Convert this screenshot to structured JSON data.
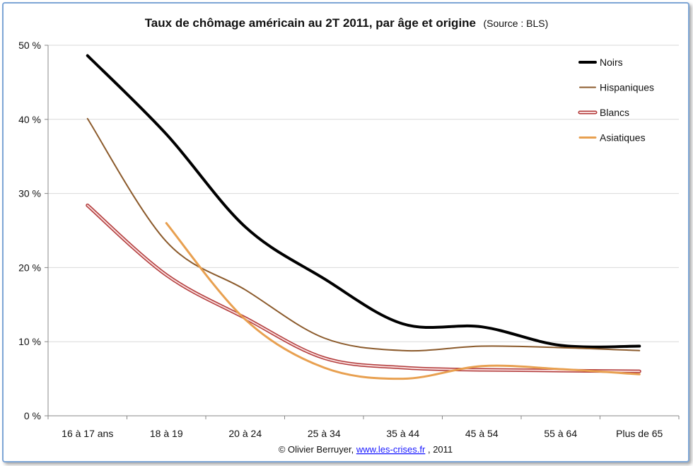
{
  "chart_data": {
    "type": "line",
    "title": "Taux de chômage américain au 2T 2011, par âge et origine",
    "subtitle": "(Source : BLS)",
    "categories": [
      "16 à 17 ans",
      "18 à 19",
      "20 à 24",
      "25 à 34",
      "35 à 44",
      "45 à 54",
      "55 à 64",
      "Plus de 65"
    ],
    "y_ticks": [
      "0 %",
      "10 %",
      "20 %",
      "30 %",
      "40 %",
      "50 %"
    ],
    "ylim": [
      0,
      50
    ],
    "grid": "horizontal",
    "legend_position": "top-right",
    "series": [
      {
        "name": "Noirs",
        "values": [
          48.6,
          38.0,
          25.5,
          18.5,
          12.4,
          12.0,
          9.5,
          9.4
        ],
        "color": "#000000",
        "style": "thick"
      },
      {
        "name": "Hispaniques",
        "values": [
          40.1,
          23.5,
          17.0,
          10.5,
          8.8,
          9.4,
          9.2,
          8.8
        ],
        "color": "#8b5a2b",
        "style": "thin"
      },
      {
        "name": "Blancs",
        "values": [
          28.4,
          19.0,
          13.2,
          7.8,
          6.5,
          6.2,
          6.1,
          6.0
        ],
        "color": "#b23a3a",
        "style": "double"
      },
      {
        "name": "Asiatiques",
        "values": [
          null,
          26.0,
          13.0,
          6.5,
          5.0,
          6.7,
          6.3,
          5.6
        ],
        "color": "#e8a050",
        "style": "medium"
      }
    ]
  },
  "credit": {
    "prefix": "© Olivier Berruyer, ",
    "link": "www.les-crises.fr",
    "suffix": ",  2011"
  }
}
